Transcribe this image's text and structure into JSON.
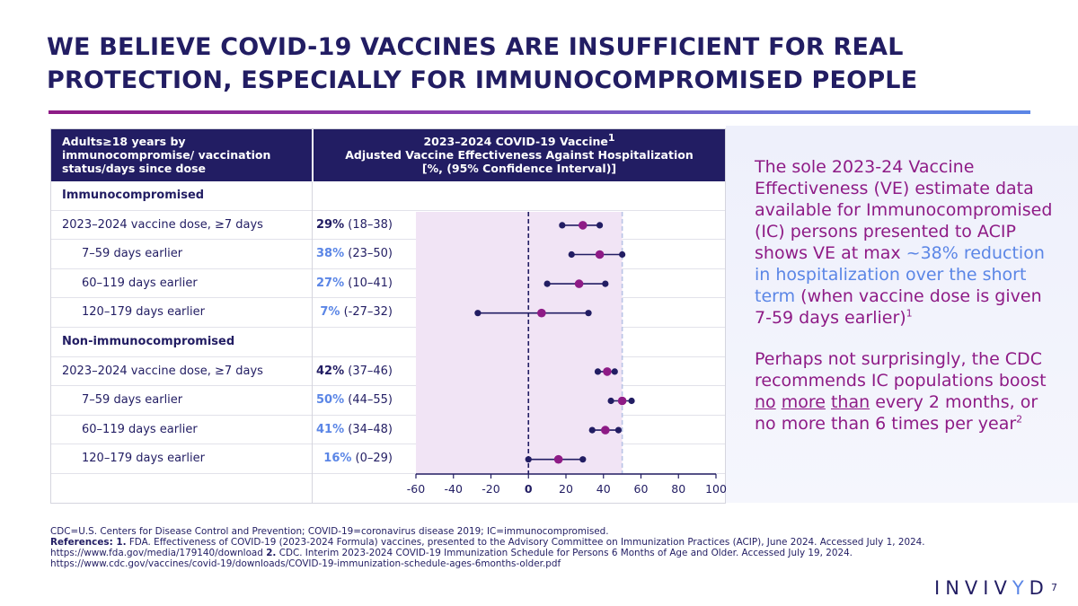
{
  "slide": {
    "title": "WE BELIEVE COVID-19 VACCINES ARE INSUFFICIENT FOR REAL PROTECTION, ESPECIALLY FOR IMMUNOCOMPROMISED PEOPLE",
    "page_number": "7",
    "logo_text": "INVIVYD"
  },
  "table": {
    "header_left": "Adults≥18 years by immunocompromise/ vaccination status/days since dose",
    "header_right_line1": "2023–2024  COVID-19 Vaccine",
    "header_right_sup": "1",
    "header_right_line2": "Adjusted Vaccine Effectiveness Against Hospitalization",
    "header_right_line3": "[%, (95% Confidence Interval)]",
    "rows": [
      {
        "label": "Immunocompromised",
        "type": "group",
        "pct": "",
        "ci": ""
      },
      {
        "label": "2023–2024 vaccine dose, ≥7 days",
        "type": "main",
        "pct": "29%",
        "ci": " (18–38)"
      },
      {
        "label": "7–59 days earlier",
        "type": "sub",
        "pct": "38%",
        "ci": " (23–50)"
      },
      {
        "label": "60–119 days earlier",
        "type": "sub",
        "pct": "27%",
        "ci": " (10–41)"
      },
      {
        "label": "120–179 days earlier",
        "type": "sub",
        "pct": "7%",
        "ci": " (-27–32)"
      },
      {
        "label": "Non-immunocompromised",
        "type": "group",
        "pct": "",
        "ci": ""
      },
      {
        "label": "2023–2024 vaccine dose, ≥7 days",
        "type": "main",
        "pct": "42%",
        "ci": " (37–46)"
      },
      {
        "label": "7–59 days earlier",
        "type": "sub",
        "pct": "50%",
        "ci": " (44–55)"
      },
      {
        "label": "60–119 days earlier",
        "type": "sub",
        "pct": "41%",
        "ci": " (34–48)"
      },
      {
        "label": "120–179 days earlier",
        "type": "sub",
        "pct": "16%",
        "ci": " (0–29)"
      }
    ]
  },
  "panel": {
    "p1_a": "The sole 2023-24 Vaccine Effectiveness (VE) estimate data available for Immunocompromised (IC) persons presented to ACIP shows VE at max ",
    "p1_highlight": "~38% reduction in hospitalization over the short term",
    "p1_b": " (when vaccine dose is given 7-59 days earlier)",
    "p1_sup": "1",
    "p2_a": "Perhaps not surprisingly, the CDC recommends IC populations boost ",
    "p2_u1": "no",
    "p2_u2": "more",
    "p2_u3": "than",
    "p2_b": " every 2 months, or no more than 6 times per year",
    "p2_sup": "2"
  },
  "footnotes": {
    "line1": "CDC=U.S. Centers for Disease Control and Prevention; COVID-19=coronavirus disease 2019; IC=immunocompromised.",
    "refs_label": "References: 1.",
    "ref1": " FDA. Effectiveness of COVID-19 (2023-2024 Formula) vaccines, presented to the Advisory Committee on Immunization Practices (ACIP), June 2024. Accessed July 1, 2024.",
    "ref1_url": "https://www.fda.gov/media/179140/download ",
    "ref2_label": "2.",
    "ref2": " CDC. Interim 2023-2024 COVID-19 Immunization Schedule  for Persons 6 Months of Age and Older. Accessed July 19, 2024.",
    "ref2_url": "https://www.cdc.gov/vaccines/covid-19/downloads/COVID-19-immunization-schedule-ages-6months-older.pdf"
  },
  "colors": {
    "navy": "#221d63",
    "magenta": "#8e1b86",
    "blue": "#5b86e6",
    "shade": "#f1e4f5",
    "refline": "#b9c3e6"
  },
  "chart_data": {
    "type": "forest",
    "xlim": [
      -60,
      100
    ],
    "ticks": [
      -60,
      -40,
      -20,
      0,
      20,
      40,
      60,
      80,
      100
    ],
    "tick_labels": [
      "-60",
      "-40",
      "-20",
      "0",
      "20",
      "40",
      "60",
      "80",
      "100"
    ],
    "shaded_range": [
      -60,
      50
    ],
    "reference_lines": [
      0,
      50
    ],
    "series": [
      {
        "name": "Immunocompromised — 2023–2024 vaccine dose, ≥7 days",
        "row": 1,
        "estimate": 29,
        "lower": 18,
        "upper": 38
      },
      {
        "name": "Immunocompromised — 7–59 days earlier",
        "row": 2,
        "estimate": 38,
        "lower": 23,
        "upper": 50
      },
      {
        "name": "Immunocompromised — 60–119 days earlier",
        "row": 3,
        "estimate": 27,
        "lower": 10,
        "upper": 41
      },
      {
        "name": "Immunocompromised — 120–179 days earlier",
        "row": 4,
        "estimate": 7,
        "lower": -27,
        "upper": 32
      },
      {
        "name": "Non-immunocompromised — 2023–2024 vaccine dose, ≥7 days",
        "row": 6,
        "estimate": 42,
        "lower": 37,
        "upper": 46
      },
      {
        "name": "Non-immunocompromised — 7–59 days earlier",
        "row": 7,
        "estimate": 50,
        "lower": 44,
        "upper": 55
      },
      {
        "name": "Non-immunocompromised — 60–119 days earlier",
        "row": 8,
        "estimate": 41,
        "lower": 34,
        "upper": 48
      },
      {
        "name": "Non-immunocompromised — 120–179 days earlier",
        "row": 9,
        "estimate": 16,
        "lower": 0,
        "upper": 29
      }
    ]
  }
}
